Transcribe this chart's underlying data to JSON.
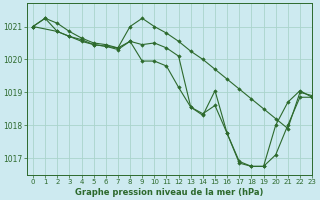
{
  "title": "Graphe pression niveau de la mer (hPa)",
  "bg_color": "#cdeaf0",
  "grid_color": "#aad4cc",
  "line_color": "#2d6a2d",
  "marker_color": "#2d6a2d",
  "xlim": [
    -0.5,
    23
  ],
  "ylim": [
    1016.5,
    1021.7
  ],
  "yticks": [
    1017,
    1018,
    1019,
    1020,
    1021
  ],
  "xticks": [
    0,
    1,
    2,
    3,
    4,
    5,
    6,
    7,
    8,
    9,
    10,
    11,
    12,
    13,
    14,
    15,
    16,
    17,
    18,
    19,
    20,
    21,
    22,
    23
  ],
  "series": [
    {
      "x": [
        0,
        1,
        2,
        3,
        4,
        5,
        6,
        7,
        8,
        9,
        10,
        11,
        12,
        13,
        14,
        15,
        16,
        17,
        18,
        19,
        20,
        21,
        22,
        23
      ],
      "y": [
        1021.0,
        1021.25,
        1021.1,
        1020.85,
        1020.65,
        1020.5,
        1020.45,
        1020.35,
        1021.0,
        1021.25,
        1021.0,
        1020.8,
        1020.55,
        1020.25,
        1020.0,
        1019.7,
        1019.4,
        1019.1,
        1018.8,
        1018.5,
        1018.2,
        1017.9,
        1019.0,
        1018.9
      ]
    },
    {
      "x": [
        0,
        1,
        2,
        3,
        4,
        5,
        6,
        7,
        8,
        9,
        10,
        11,
        12,
        13,
        14,
        15,
        16,
        17,
        18,
        19,
        20,
        21,
        22,
        23
      ],
      "y": [
        1021.0,
        1021.25,
        1020.85,
        1020.7,
        1020.55,
        1020.45,
        1020.4,
        1020.35,
        1020.55,
        1020.45,
        1020.5,
        1020.35,
        1020.1,
        1018.55,
        1018.35,
        1018.6,
        1017.75,
        1016.9,
        1016.75,
        1016.75,
        1017.1,
        1018.0,
        1018.85,
        1018.85
      ]
    },
    {
      "x": [
        0,
        2,
        3,
        4,
        5,
        6,
        7,
        8,
        9,
        10,
        11,
        12,
        13,
        14,
        15,
        16,
        17,
        18,
        19,
        20,
        21,
        22,
        23
      ],
      "y": [
        1021.0,
        1020.85,
        1020.7,
        1020.6,
        1020.45,
        1020.4,
        1020.3,
        1020.55,
        1019.95,
        1019.95,
        1019.8,
        1019.15,
        1018.55,
        1018.3,
        1019.05,
        1017.75,
        1016.85,
        1016.75,
        1016.75,
        1018.0,
        1018.7,
        1019.05,
        1018.85
      ]
    }
  ]
}
